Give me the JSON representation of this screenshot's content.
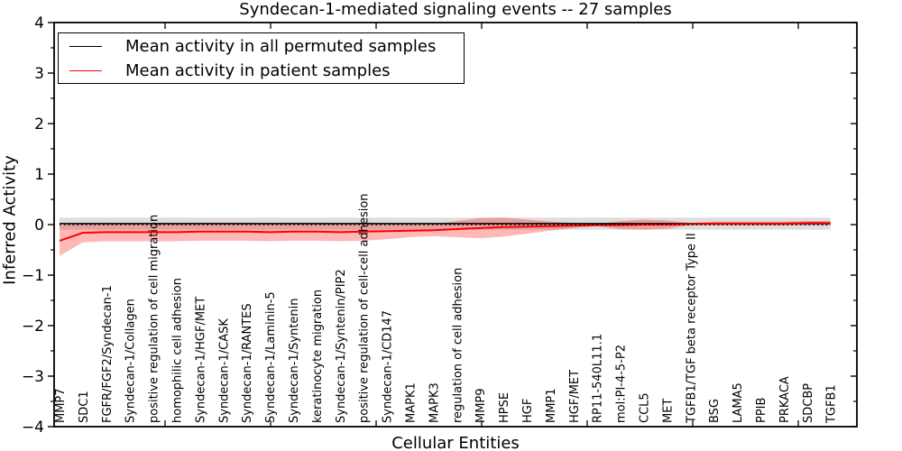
{
  "figure": {
    "title": "Syndecan-1-mediated signaling events -- 27 samples",
    "xlabel": "Cellular Entities",
    "ylabel": "Inferred Activity"
  },
  "legend": {
    "items": [
      {
        "label": "Mean activity in all permuted samples",
        "color": "#000000"
      },
      {
        "label": "Mean activity in patient samples",
        "color": "#ff0000"
      }
    ]
  },
  "chart_data": {
    "type": "line",
    "title": "Syndecan-1-mediated signaling events -- 27 samples",
    "xlabel": "Cellular Entities",
    "ylabel": "Inferred Activity",
    "ylim": [
      -4,
      4
    ],
    "y_major_ticks": [
      -4,
      -3,
      -2,
      -1,
      0,
      1,
      2,
      3,
      4
    ],
    "y_minor_ticks": [
      -3.5,
      -2.5,
      -1.5,
      -0.5,
      0.5,
      1.5,
      2.5,
      3.5
    ],
    "grid": false,
    "legend_position": "upper left",
    "zero_line": {
      "y": 0,
      "style": "dotted",
      "color": "#000000"
    },
    "categories": [
      "MMP7",
      "SDC1",
      "FGFR/FGF2/Syndecan-1",
      "Syndecan-1/Collagen",
      "positive regulation of cell migration",
      "homophilic cell adhesion",
      "Syndecan-1/HGF/MET",
      "Syndecan-1/CASK",
      "Syndecan-1/RANTES",
      "Syndecan-1/Laminin-5",
      "Syndecan-1/Syntenin",
      "keratinocyte migration",
      "Syndecan-1/Syntenin/PIP2",
      "positive regulation of cell-cell adhesion",
      "Syndecan-1/CD147",
      "MAPK1",
      "MAPK3",
      "regulation of cell adhesion",
      "MMP9",
      "HPSE",
      "HGF",
      "MMP1",
      "HGF/MET",
      "RP11-540L11.1",
      "mol:PI-4-5-P2",
      "CCL5",
      "MET",
      "TGFB1/TGF beta receptor Type II",
      "BSG",
      "LAMA5",
      "PPIB",
      "PRKACA",
      "SDCBP",
      "TGFB1"
    ],
    "series": [
      {
        "name": "Mean activity in all permuted samples",
        "color": "#000000",
        "line_width": 1.5,
        "band_color": "rgba(0,0,0,0.13)",
        "values": [
          0.02,
          0.02,
          0.02,
          0.02,
          0.02,
          0.02,
          0.02,
          0.02,
          0.02,
          0.02,
          0.02,
          0.02,
          0.02,
          0.02,
          0.02,
          0.02,
          0.02,
          0.02,
          0.02,
          0.02,
          0.02,
          0.02,
          0.02,
          0.02,
          0.02,
          0.02,
          0.02,
          0.02,
          0.02,
          0.02,
          0.02,
          0.02,
          0.02,
          0.02
        ],
        "band_std": [
          0.12,
          0.12,
          0.12,
          0.12,
          0.12,
          0.12,
          0.12,
          0.12,
          0.12,
          0.12,
          0.12,
          0.12,
          0.12,
          0.12,
          0.12,
          0.12,
          0.12,
          0.12,
          0.12,
          0.12,
          0.12,
          0.12,
          0.12,
          0.12,
          0.12,
          0.12,
          0.12,
          0.12,
          0.12,
          0.12,
          0.12,
          0.12,
          0.12,
          0.12
        ]
      },
      {
        "name": "Mean activity in patient samples",
        "color": "#ff0000",
        "line_width": 2,
        "band_color": "rgba(255,0,0,0.28)",
        "values": [
          -0.32,
          -0.16,
          -0.15,
          -0.15,
          -0.15,
          -0.15,
          -0.14,
          -0.14,
          -0.14,
          -0.15,
          -0.14,
          -0.14,
          -0.15,
          -0.14,
          -0.13,
          -0.12,
          -0.11,
          -0.09,
          -0.07,
          -0.05,
          -0.04,
          -0.03,
          -0.02,
          -0.01,
          -0.01,
          0,
          0,
          0.01,
          0.02,
          0.02,
          0.02,
          0.02,
          0.03,
          0.03
        ],
        "band_std": [
          0.3,
          0.19,
          0.18,
          0.18,
          0.18,
          0.18,
          0.18,
          0.18,
          0.18,
          0.18,
          0.18,
          0.18,
          0.18,
          0.18,
          0.16,
          0.13,
          0.12,
          0.16,
          0.2,
          0.19,
          0.14,
          0.09,
          0.05,
          0.02,
          0.08,
          0.1,
          0.08,
          0.02,
          0.04,
          0.04,
          0.04,
          0.04,
          0.04,
          0.04
        ]
      }
    ]
  }
}
